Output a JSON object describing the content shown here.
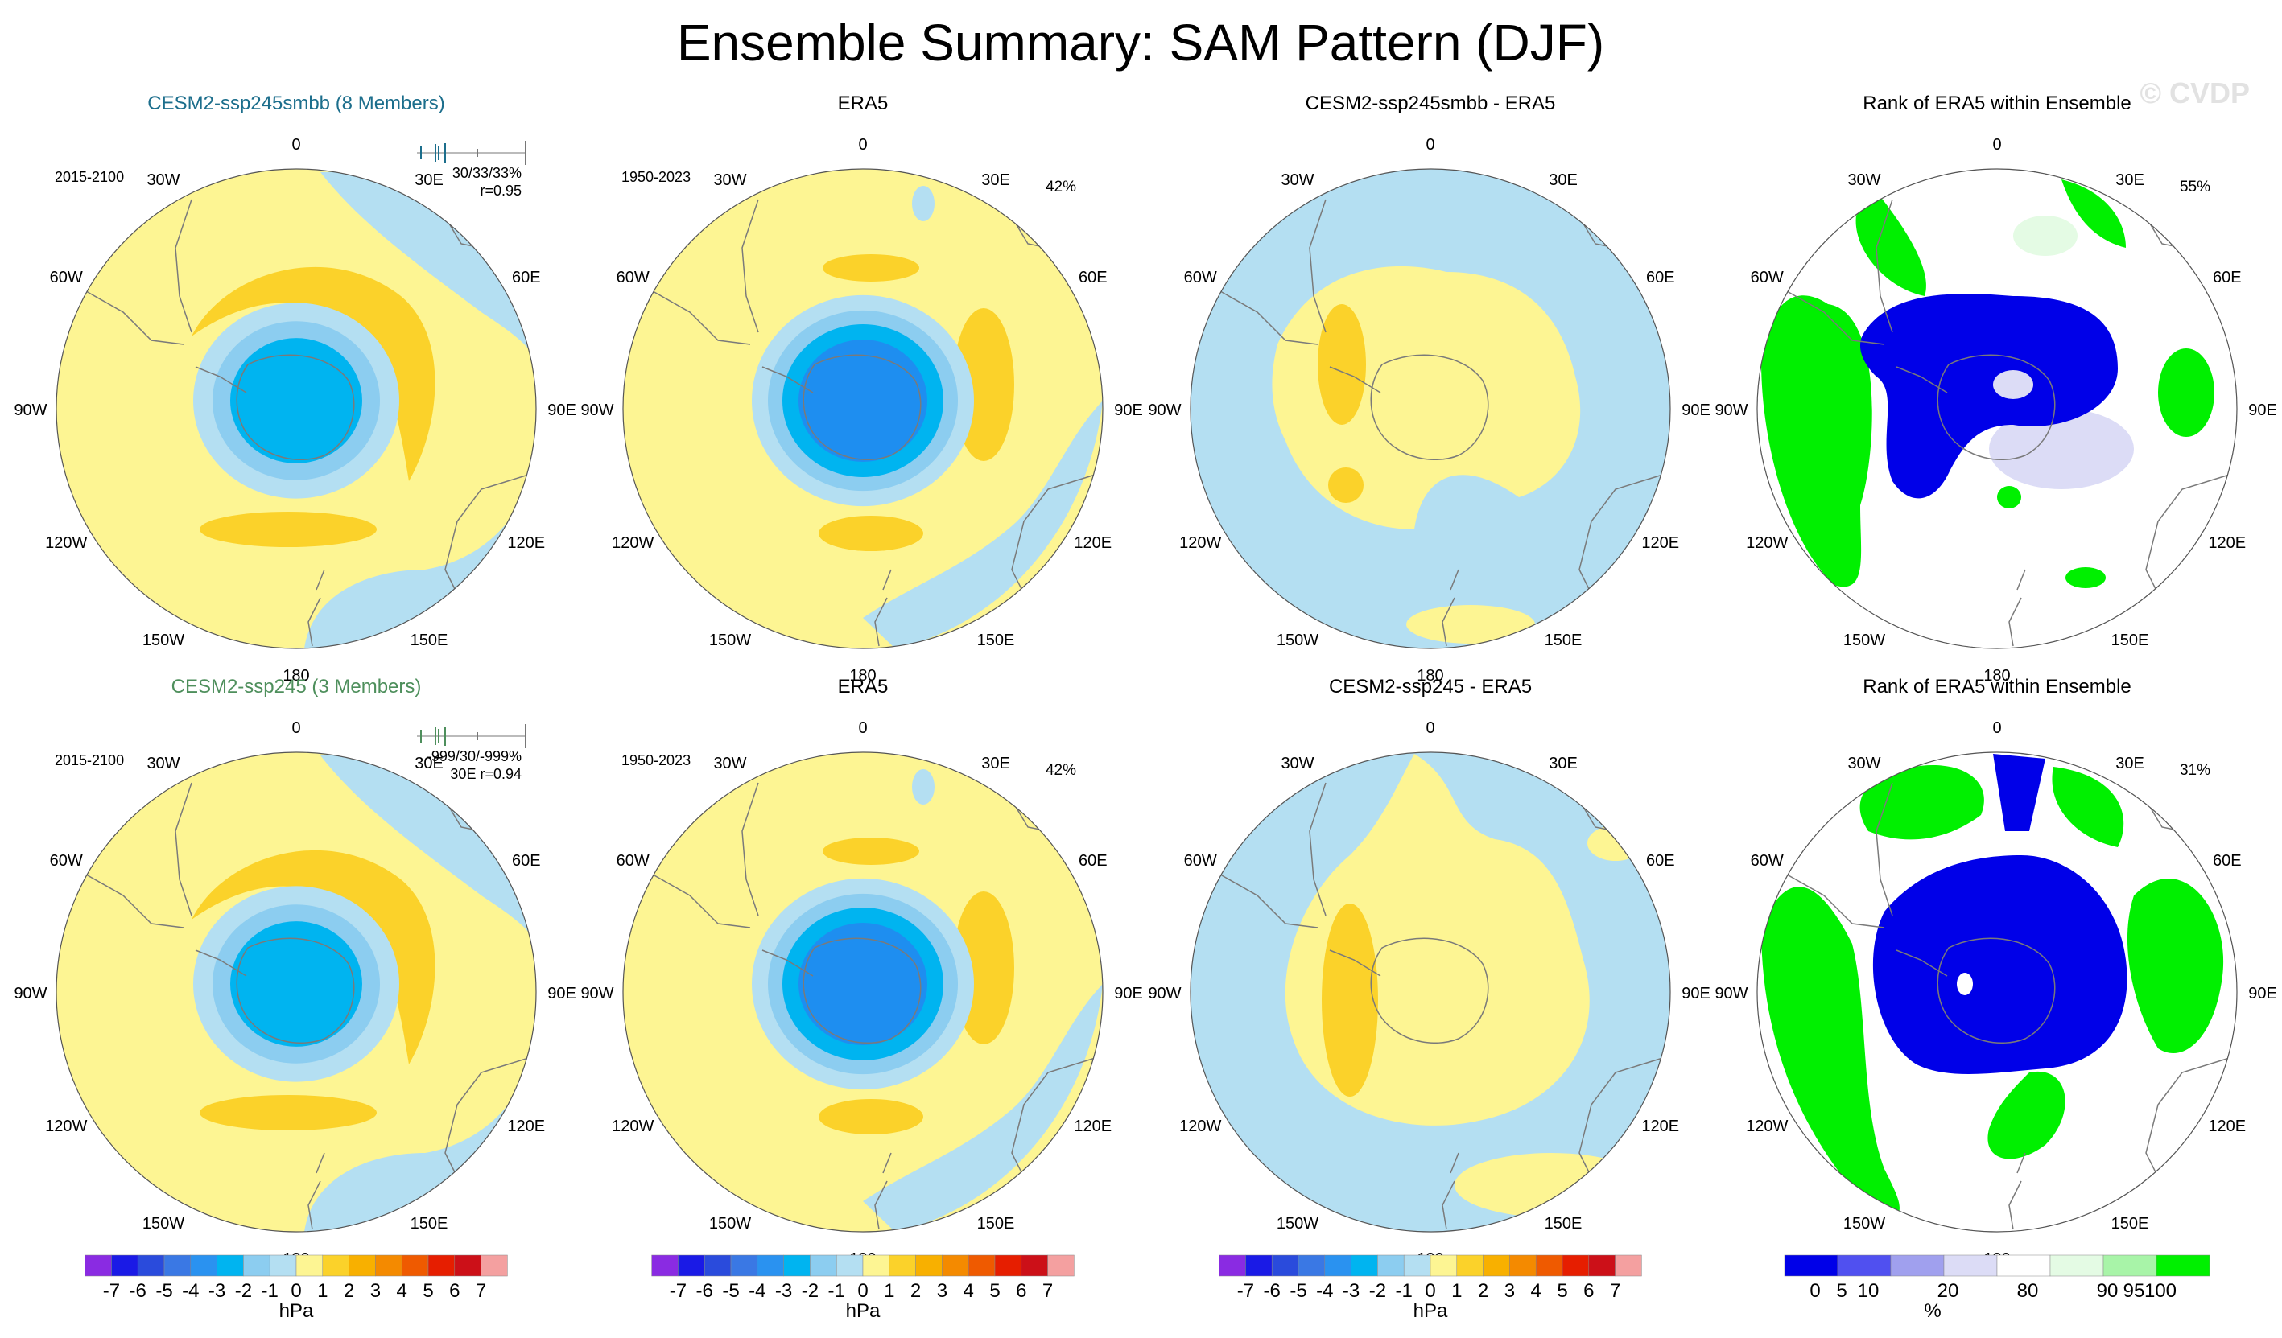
{
  "figure": {
    "title": "Ensemble Summary: SAM Pattern (DJF)",
    "watermark": "© CVDP"
  },
  "colors": {
    "yellow_light": "#fdf593",
    "yellow_dark": "#fbd22a",
    "blue_pale": "#b4dff2",
    "blue_mid": "#8ccdf0",
    "blue_cyan": "#00b4f0",
    "blue_deep": "#1e8ef0",
    "rank_blue": "#0000e8",
    "rank_green": "#00f000",
    "rank_palegreen": "#e4fbe4",
    "rank_lavender": "#dcdcf6",
    "coast": "#7a7a7a",
    "title_teal": "#1c6e8c",
    "title_green": "#4e8f5c"
  },
  "chart_data": [
    {
      "type": "polar-map",
      "panel": "r1c1",
      "title": "CESM2-ssp245smbb (8 Members)",
      "period": "2015-2100",
      "stats_line1": "30/33/33%",
      "stats_line2": "r=0.95",
      "field": "anomaly"
    },
    {
      "type": "polar-map",
      "panel": "r1c2",
      "title": "ERA5",
      "period": "1950-2023",
      "percent": "42%",
      "field": "anomaly"
    },
    {
      "type": "polar-map",
      "panel": "r1c3",
      "title": "CESM2-ssp245smbb - ERA5",
      "field": "difference"
    },
    {
      "type": "polar-map",
      "panel": "r1c4",
      "title": "Rank of ERA5 within Ensemble",
      "percent": "55%",
      "field": "rank"
    },
    {
      "type": "polar-map",
      "panel": "r2c1",
      "title": "CESM2-ssp245 (3 Members)",
      "period": "2015-2100",
      "stats_line1": "-999/30/-999%",
      "stats_line2": "30E r=0.94",
      "field": "anomaly"
    },
    {
      "type": "polar-map",
      "panel": "r2c2",
      "title": "ERA5",
      "period": "1950-2023",
      "percent": "42%",
      "field": "anomaly"
    },
    {
      "type": "polar-map",
      "panel": "r2c3",
      "title": "CESM2-ssp245 - ERA5",
      "field": "difference"
    },
    {
      "type": "polar-map",
      "panel": "r2c4",
      "title": "Rank of ERA5 within Ensemble",
      "percent": "31%",
      "field": "rank"
    }
  ],
  "longitude_labels": [
    "0",
    "30E",
    "60E",
    "90E",
    "120E",
    "150E",
    "180",
    "150W",
    "120W",
    "90W",
    "60W",
    "30W"
  ],
  "colorbar_hpa": {
    "labels": [
      "-7",
      "-6",
      "-5",
      "-4",
      "-3",
      "-2",
      "-1",
      "0",
      "1",
      "2",
      "3",
      "4",
      "5",
      "6",
      "7"
    ],
    "units": "hPa",
    "colors": [
      "#8a2be2",
      "#1a1ae6",
      "#2a4bdc",
      "#3a78e4",
      "#2a92f0",
      "#00b4f0",
      "#8ccdf0",
      "#b4dff2",
      "#fdf593",
      "#fbd22a",
      "#f8b000",
      "#f48a00",
      "#ef5a00",
      "#e61e00",
      "#cc1018",
      "#f4a0a0"
    ]
  },
  "colorbar_rank": {
    "labels": [
      "0",
      "5",
      "10",
      "20",
      "80",
      "90",
      "95",
      "100"
    ],
    "units": "%",
    "colors": [
      "#0000e8",
      "#5050f0",
      "#a0a0ee",
      "#dcdcf6",
      "#ffffff",
      "#e4fbe4",
      "#a8f4a8",
      "#00f000"
    ]
  }
}
